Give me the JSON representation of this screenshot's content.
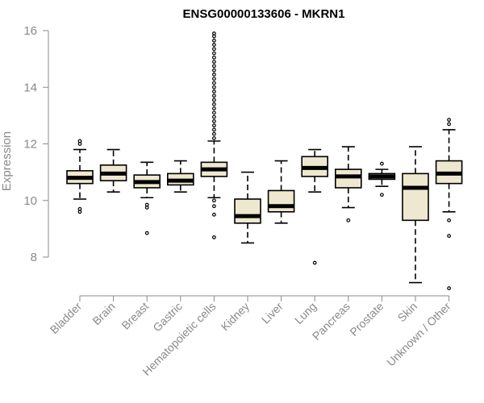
{
  "chart_data": {
    "type": "boxplot",
    "title": "ENSG00000133606 - MKRN1",
    "xlabel": "",
    "ylabel": "Expression",
    "ylim": [
      6.8,
      16.2
    ],
    "yticks": [
      8,
      10,
      12,
      14,
      16
    ],
    "box_color": "#efe8d0",
    "line_color": "#000000",
    "axis_color": "#8a8a8a",
    "categories": [
      "Bladder",
      "Brain",
      "Breast",
      "Gastric",
      "Hematopoietic cells",
      "Kidney",
      "Liver",
      "Lung",
      "Pancreas",
      "Prostate",
      "Skin",
      "Unknown / Other"
    ],
    "boxes": [
      {
        "name": "Bladder",
        "whisker_low": 10.05,
        "q1": 10.6,
        "median": 10.8,
        "q3": 11.05,
        "whisker_high": 11.8,
        "outliers": [
          12.0,
          12.1,
          9.7,
          9.6
        ]
      },
      {
        "name": "Brain",
        "whisker_low": 10.3,
        "q1": 10.7,
        "median": 10.95,
        "q3": 11.25,
        "whisker_high": 11.8,
        "outliers": []
      },
      {
        "name": "Breast",
        "whisker_low": 10.1,
        "q1": 10.45,
        "median": 10.65,
        "q3": 10.9,
        "whisker_high": 11.35,
        "outliers": [
          9.85,
          9.75,
          8.85
        ]
      },
      {
        "name": "Gastric",
        "whisker_low": 10.3,
        "q1": 10.55,
        "median": 10.7,
        "q3": 10.95,
        "whisker_high": 11.4,
        "outliers": []
      },
      {
        "name": "Hematopoietic cells",
        "whisker_low": 10.1,
        "q1": 10.85,
        "median": 11.1,
        "q3": 11.35,
        "whisker_high": 12.1,
        "outliers": [
          12.2,
          12.35,
          12.5,
          12.65,
          12.8,
          12.95,
          13.1,
          13.25,
          13.4,
          13.55,
          13.7,
          13.85,
          14.0,
          14.15,
          14.3,
          14.45,
          14.6,
          14.75,
          14.9,
          15.05,
          15.2,
          15.35,
          15.5,
          15.65,
          15.8,
          15.9,
          10.0,
          9.8,
          9.5,
          8.7
        ]
      },
      {
        "name": "Kidney",
        "whisker_low": 8.5,
        "q1": 9.2,
        "median": 9.45,
        "q3": 10.05,
        "whisker_high": 11.0,
        "outliers": []
      },
      {
        "name": "Liver",
        "whisker_low": 9.2,
        "q1": 9.6,
        "median": 9.8,
        "q3": 10.35,
        "whisker_high": 11.4,
        "outliers": []
      },
      {
        "name": "Lung",
        "whisker_low": 10.3,
        "q1": 10.85,
        "median": 11.15,
        "q3": 11.55,
        "whisker_high": 11.8,
        "outliers": [
          7.8
        ]
      },
      {
        "name": "Pancreas",
        "whisker_low": 9.75,
        "q1": 10.45,
        "median": 10.85,
        "q3": 11.1,
        "whisker_high": 11.9,
        "outliers": [
          9.3
        ]
      },
      {
        "name": "Prostate",
        "whisker_low": 10.5,
        "q1": 10.75,
        "median": 10.85,
        "q3": 10.95,
        "whisker_high": 11.1,
        "outliers": [
          11.3,
          10.2
        ]
      },
      {
        "name": "Skin",
        "whisker_low": 7.1,
        "q1": 9.3,
        "median": 10.45,
        "q3": 10.95,
        "whisker_high": 11.9,
        "outliers": []
      },
      {
        "name": "Unknown / Other",
        "whisker_low": 9.6,
        "q1": 10.6,
        "median": 10.95,
        "q3": 11.4,
        "whisker_high": 12.5,
        "outliers": [
          12.7,
          12.85,
          9.3,
          8.75,
          6.9
        ]
      }
    ]
  }
}
